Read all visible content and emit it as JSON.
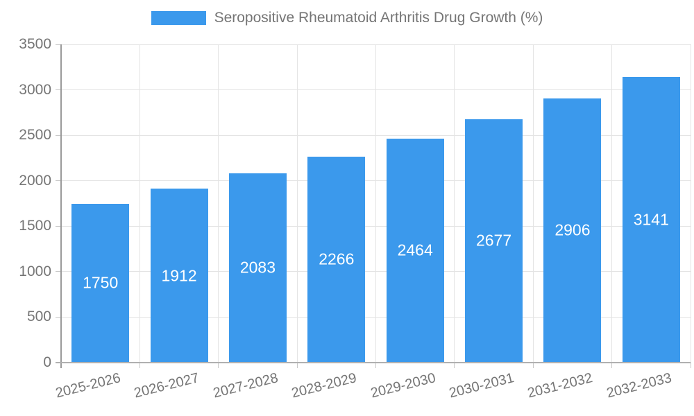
{
  "chart_data": {
    "type": "bar",
    "title": "Seropositive Rheumatoid Arthritis Drug Growth (%)",
    "categories": [
      "2025-2026",
      "2026-2027",
      "2027-2028",
      "2028-2029",
      "2029-2030",
      "2030-2031",
      "2031-2032",
      "2032-2033"
    ],
    "values": [
      1750,
      1912,
      2083,
      2266,
      2464,
      2677,
      2906,
      3141
    ],
    "xlabel": "",
    "ylabel": "",
    "ylim": [
      0,
      3500
    ],
    "ytick_step": 500,
    "grid": true,
    "legend_position": "top-center",
    "value_labels": "inside-center",
    "colors": {
      "bar": "#3b99ec",
      "axis_text": "#757575",
      "value_text": "#ffffff",
      "gridline": "#e4e4e4",
      "axis_line": "#9a9a9a"
    }
  }
}
